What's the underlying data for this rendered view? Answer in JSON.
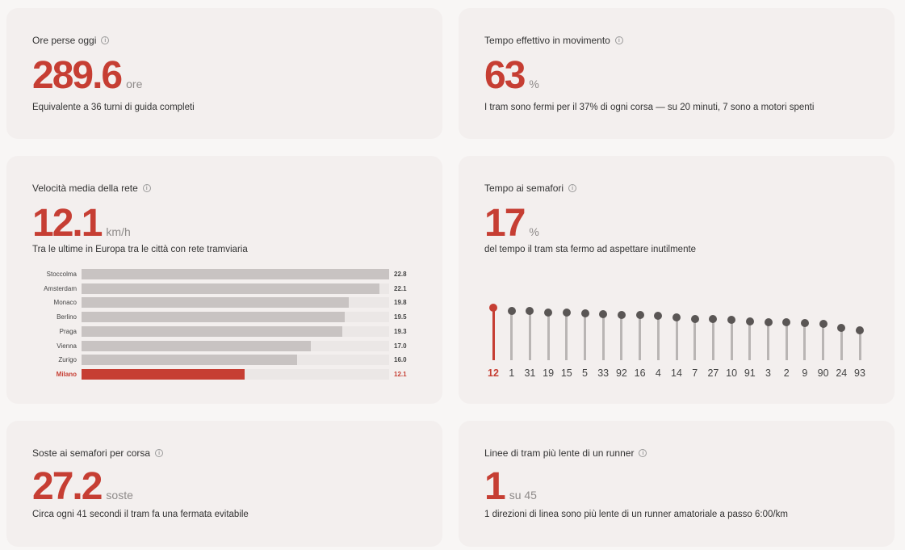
{
  "colors": {
    "accent": "#c63e33",
    "bar_gray": "#c8c3c2",
    "dot_gray": "#5a5655"
  },
  "cards": {
    "ore_perse": {
      "label": "Ore perse oggi",
      "value": "289.6",
      "unit": "ore",
      "desc": "Equivalente a 36 turni di guida completi"
    },
    "tempo_movimento": {
      "label": "Tempo effettivo in movimento",
      "value": "63",
      "unit": "%",
      "desc": "I tram sono fermi per il 37% di ogni corsa — su 20 minuti, 7 sono a motori spenti"
    },
    "velocita": {
      "label": "Velocità media della rete",
      "value": "12.1",
      "unit": "km/h",
      "desc": "Tra le ultime in Europa tra le città con rete tramviaria"
    },
    "semafori": {
      "label": "Tempo ai semafori",
      "value": "17",
      "unit": "%",
      "desc": "del tempo il tram sta fermo ad aspettare inutilmente"
    },
    "soste": {
      "label": "Soste ai semafori per corsa",
      "value": "27.2",
      "unit": "soste",
      "desc": "Circa ogni 41 secondi il tram fa una fermata evitabile"
    },
    "linee_lente": {
      "label": "Linee di tram più lente di un runner",
      "value": "1",
      "unit": "su 45",
      "desc": "1 direzioni di linea sono più lente di un runner amatoriale a passo 6:00/km"
    }
  },
  "chart_data": [
    {
      "type": "bar",
      "orientation": "horizontal",
      "categories": [
        "Stoccolma",
        "Amsterdam",
        "Monaco",
        "Berlino",
        "Praga",
        "Vienna",
        "Zurigo",
        "Milano"
      ],
      "values": [
        22.8,
        22.1,
        19.8,
        19.5,
        19.3,
        17.0,
        16.0,
        12.1
      ],
      "value_labels": [
        "22.8",
        "22.1",
        "19.8",
        "19.5",
        "19.3",
        "17.0",
        "16.0",
        "12.1"
      ],
      "highlight": "Milano",
      "xlim": [
        0,
        22.8
      ]
    },
    {
      "type": "lollipop",
      "categories": [
        "12",
        "1",
        "31",
        "19",
        "15",
        "5",
        "33",
        "92",
        "16",
        "4",
        "14",
        "7",
        "27",
        "10",
        "91",
        "3",
        "2",
        "9",
        "90",
        "24",
        "93"
      ],
      "values": [
        24,
        22.5,
        22.3,
        21.8,
        21.6,
        21.3,
        20.9,
        20.7,
        20.5,
        20.1,
        19.4,
        18.9,
        18.7,
        18.5,
        17.6,
        17.4,
        17.2,
        16.9,
        16.4,
        14.7,
        13.5
      ],
      "highlight": "12",
      "ylim": [
        0,
        25
      ]
    }
  ]
}
